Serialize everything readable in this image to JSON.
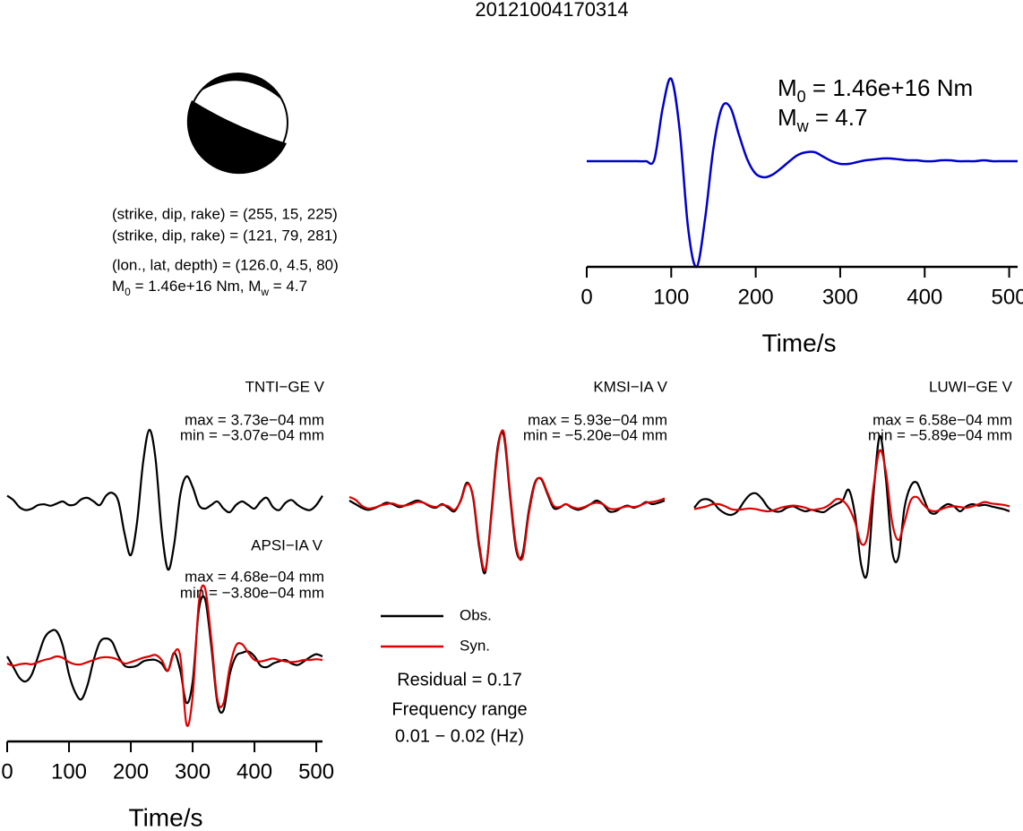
{
  "title": "20121004170314",
  "mechanism": {
    "plane1": "(strike, dip, rake) = (255, 15, 225)",
    "plane2": "(strike, dip, rake) = (121, 79, 281)",
    "location": "(lon., lat, depth) = (126.0, 4.5, 80)",
    "moment": [
      "M",
      "0",
      " = 1.46e+16 Nm, M",
      "w",
      " = 4.7"
    ]
  },
  "legend": {
    "entries": [
      {
        "name": "Obs.",
        "color": "#000000"
      },
      {
        "name": "Syn.",
        "color": "#dd0000"
      }
    ],
    "residual": "Residual = 0.17",
    "frequency": [
      "Frequency range",
      "0.01 − 0.02 (Hz)"
    ]
  },
  "chart_data": [
    {
      "type": "line",
      "annotations": [
        [
          "M",
          "0",
          " = 1.46e+16 Nm"
        ],
        [
          "M",
          "w",
          " = 4.7"
        ]
      ],
      "x": [
        0,
        10,
        20,
        30,
        40,
        50,
        60,
        70,
        80,
        90,
        100,
        110,
        120,
        130,
        140,
        150,
        160,
        170,
        180,
        190,
        200,
        210,
        220,
        230,
        240,
        250,
        260,
        270,
        280,
        290,
        300,
        310,
        320,
        330,
        340,
        350,
        360,
        370,
        380,
        390,
        400,
        410,
        420,
        430,
        440,
        450,
        460,
        470,
        480,
        490,
        500,
        510
      ],
      "series": [
        {
          "color": "#0000cc",
          "values": [
            0,
            0,
            0,
            0,
            0,
            0,
            0,
            0,
            0.02,
            0.6,
            0.92,
            0.35,
            -0.75,
            -1.18,
            -0.65,
            0.15,
            0.6,
            0.6,
            0.3,
            0.02,
            -0.14,
            -0.18,
            -0.15,
            -0.08,
            0.0,
            0.07,
            0.1,
            0.1,
            0.05,
            0.0,
            -0.03,
            -0.03,
            -0.01,
            0.01,
            0.02,
            0.03,
            0.03,
            0.02,
            0.01,
            0.01,
            0.0,
            0.0,
            0.01,
            0.01,
            0.0,
            0.0,
            0.0,
            0.01,
            0.0,
            0.0,
            0.0,
            0.0
          ]
        }
      ],
      "xlim": [
        0,
        510
      ],
      "ylim": [
        -1.2,
        1.0
      ],
      "xticks": [
        0,
        100,
        200,
        300,
        400,
        500
      ],
      "xlabel": "Time/s"
    },
    {
      "type": "line",
      "title": "TNTI−GE V",
      "annotations": [
        "max = 3.73e−04 mm",
        "min = −3.07e−04 mm"
      ],
      "x": [
        0,
        10,
        20,
        30,
        40,
        50,
        60,
        70,
        80,
        90,
        100,
        110,
        120,
        130,
        140,
        150,
        160,
        170,
        180,
        190,
        200,
        210,
        220,
        230,
        240,
        250,
        260,
        270,
        280,
        290,
        300,
        310,
        320,
        330,
        340,
        350,
        360,
        370,
        380,
        390,
        400,
        410,
        420,
        430,
        440,
        450,
        460,
        470,
        480,
        490,
        500,
        510
      ],
      "series": [
        {
          "color": "#000000",
          "values": [
            0.08,
            0.02,
            -0.08,
            -0.12,
            -0.1,
            -0.05,
            -0.04,
            -0.06,
            -0.03,
            0.0,
            -0.05,
            -0.04,
            0.03,
            0.05,
            0.0,
            -0.05,
            0.08,
            0.12,
            0.0,
            -0.45,
            -0.75,
            -0.3,
            0.55,
            1.0,
            0.6,
            -0.4,
            -0.95,
            -0.6,
            0.1,
            0.35,
            0.2,
            -0.05,
            -0.1,
            -0.05,
            0.0,
            -0.1,
            -0.15,
            -0.05,
            0.0,
            -0.05,
            -0.1,
            0.0,
            0.05,
            -0.08,
            -0.12,
            -0.02,
            0.02,
            -0.05,
            -0.1,
            -0.12,
            -0.05,
            0.08
          ]
        }
      ],
      "xlim": [
        0,
        510
      ],
      "ylim": [
        -1,
        1
      ]
    },
    {
      "type": "line",
      "title": "KMSI−IA V",
      "annotations": [
        "max = 5.93e−04 mm",
        "min = −5.20e−04 mm"
      ],
      "x": [
        0,
        10,
        20,
        30,
        40,
        50,
        60,
        70,
        80,
        90,
        100,
        110,
        120,
        130,
        140,
        150,
        160,
        170,
        180,
        190,
        200,
        210,
        220,
        230,
        240,
        250,
        260,
        270,
        280,
        290,
        300,
        310,
        320,
        330,
        340,
        350,
        360,
        370,
        380,
        390,
        400,
        410,
        420,
        430,
        440,
        450,
        460,
        470,
        480,
        490,
        500,
        510
      ],
      "series": [
        {
          "color": "#000000",
          "values": [
            0.05,
            0.0,
            -0.05,
            -0.08,
            -0.06,
            -0.02,
            0.02,
            0.0,
            -0.04,
            -0.02,
            0.02,
            0.05,
            0.02,
            -0.03,
            -0.05,
            0.0,
            -0.05,
            -0.1,
            0.05,
            0.3,
            0.1,
            -0.6,
            -0.95,
            -0.1,
            0.8,
            0.95,
            0.1,
            -0.65,
            -0.7,
            -0.1,
            0.3,
            0.35,
            0.15,
            -0.05,
            -0.05,
            0.0,
            -0.05,
            -0.08,
            -0.05,
            0.0,
            0.05,
            0.0,
            -0.1,
            -0.1,
            -0.05,
            -0.02,
            -0.05,
            -0.02,
            0.03,
            0.0,
            0.02,
            0.05
          ]
        },
        {
          "color": "#dd0000",
          "values": [
            0.1,
            0.06,
            -0.02,
            -0.06,
            -0.05,
            -0.02,
            0.0,
            0.01,
            -0.02,
            -0.02,
            0.0,
            0.03,
            0.02,
            -0.02,
            -0.04,
            -0.01,
            -0.03,
            -0.08,
            0.04,
            0.28,
            0.12,
            -0.55,
            -0.92,
            -0.15,
            0.75,
            1.0,
            0.15,
            -0.6,
            -0.75,
            -0.15,
            0.28,
            0.36,
            0.17,
            -0.02,
            -0.04,
            0.0,
            -0.04,
            -0.06,
            -0.04,
            0.0,
            0.02,
            0.0,
            -0.06,
            -0.07,
            -0.05,
            -0.03,
            -0.04,
            -0.02,
            0.02,
            0.03,
            0.05,
            0.08
          ]
        }
      ],
      "xlim": [
        0,
        510
      ],
      "ylim": [
        -1,
        1
      ]
    },
    {
      "type": "line",
      "title": "LUWI−GE V",
      "annotations": [
        "max = 6.58e−04 mm",
        "min = −5.89e−04 mm"
      ],
      "x": [
        0,
        10,
        20,
        30,
        40,
        50,
        60,
        70,
        80,
        90,
        100,
        110,
        120,
        130,
        140,
        150,
        160,
        170,
        180,
        190,
        200,
        210,
        220,
        230,
        240,
        250,
        260,
        270,
        280,
        290,
        300,
        310,
        320,
        330,
        340,
        350,
        360,
        370,
        380,
        390,
        400,
        410,
        420,
        430,
        440,
        450,
        460,
        470,
        480,
        490,
        500,
        510
      ],
      "series": [
        {
          "color": "#000000",
          "values": [
            0.0,
            0.1,
            0.12,
            0.08,
            -0.02,
            -0.08,
            -0.1,
            -0.05,
            0.08,
            0.18,
            0.2,
            0.12,
            0.0,
            -0.05,
            -0.05,
            0.0,
            0.02,
            -0.02,
            -0.05,
            -0.03,
            -0.05,
            -0.06,
            0.0,
            0.05,
            0.1,
            0.25,
            -0.1,
            -0.8,
            -0.9,
            0.2,
            1.0,
            0.4,
            -0.6,
            -0.7,
            0.0,
            0.3,
            0.35,
            0.15,
            -0.05,
            -0.08,
            0.0,
            0.05,
            0.02,
            -0.05,
            0.02,
            0.05,
            0.03,
            0.04,
            0.02,
            0.0,
            -0.02,
            -0.05
          ]
        },
        {
          "color": "#dd0000",
          "values": [
            -0.02,
            0.0,
            0.02,
            0.05,
            0.05,
            0.02,
            -0.02,
            -0.03,
            -0.02,
            -0.01,
            -0.02,
            -0.04,
            -0.05,
            -0.03,
            0.0,
            0.02,
            0.03,
            0.02,
            0.0,
            -0.03,
            -0.02,
            0.0,
            0.05,
            0.12,
            0.1,
            0.0,
            -0.2,
            -0.5,
            -0.4,
            0.3,
            0.8,
            0.5,
            -0.2,
            -0.45,
            -0.2,
            0.1,
            0.15,
            0.05,
            -0.03,
            -0.05,
            -0.02,
            0.01,
            0.02,
            0.01,
            0.0,
            0.02,
            0.05,
            0.08,
            0.06,
            0.05,
            0.04,
            0.02
          ]
        }
      ],
      "xlim": [
        0,
        510
      ],
      "ylim": [
        -1,
        1
      ]
    },
    {
      "type": "line",
      "title": "APSI−IA V",
      "annotations": [
        "max = 4.68e−04 mm",
        "min = −3.80e−04 mm"
      ],
      "x": [
        0,
        10,
        20,
        30,
        40,
        50,
        60,
        70,
        80,
        90,
        100,
        110,
        120,
        130,
        140,
        150,
        160,
        170,
        180,
        190,
        200,
        210,
        220,
        230,
        240,
        250,
        260,
        270,
        280,
        290,
        300,
        310,
        320,
        330,
        340,
        350,
        360,
        370,
        380,
        390,
        400,
        410,
        420,
        430,
        440,
        450,
        460,
        470,
        480,
        490,
        500,
        510
      ],
      "series": [
        {
          "color": "#000000",
          "values": [
            0.05,
            -0.1,
            -0.25,
            -0.3,
            -0.2,
            0.05,
            0.3,
            0.4,
            0.4,
            0.2,
            -0.2,
            -0.45,
            -0.55,
            -0.35,
            0.0,
            0.25,
            0.3,
            0.25,
            0.05,
            -0.08,
            -0.1,
            -0.08,
            -0.02,
            0.0,
            0.0,
            -0.05,
            -0.15,
            0.1,
            -0.15,
            -0.6,
            -0.3,
            0.7,
            0.85,
            0.2,
            -0.6,
            -0.7,
            -0.2,
            0.05,
            0.1,
            0.12,
            0.05,
            -0.08,
            -0.1,
            -0.05,
            -0.02,
            0.0,
            -0.05,
            -0.07,
            -0.02,
            0.04,
            0.08,
            0.05
          ]
        },
        {
          "color": "#dd0000",
          "values": [
            -0.05,
            -0.08,
            -0.06,
            -0.05,
            -0.06,
            -0.03,
            0.0,
            0.02,
            0.05,
            0.03,
            -0.03,
            -0.06,
            -0.06,
            -0.03,
            0.0,
            0.03,
            0.04,
            0.03,
            0.0,
            -0.05,
            -0.03,
            0.0,
            0.03,
            0.05,
            0.07,
            0.0,
            -0.15,
            0.1,
            0.05,
            -0.9,
            -0.5,
            0.8,
            1.0,
            0.3,
            -0.55,
            -0.6,
            -0.1,
            0.2,
            0.22,
            0.1,
            0.0,
            -0.02,
            0.0,
            0.02,
            0.0,
            -0.02,
            -0.03,
            -0.02,
            0.0,
            0.0,
            0.01,
            0.0
          ]
        }
      ],
      "xlim": [
        0,
        510
      ],
      "ylim": [
        -1,
        1
      ],
      "xticks": [
        0,
        100,
        200,
        300,
        400,
        500
      ],
      "xlabel": "Time/s"
    }
  ]
}
